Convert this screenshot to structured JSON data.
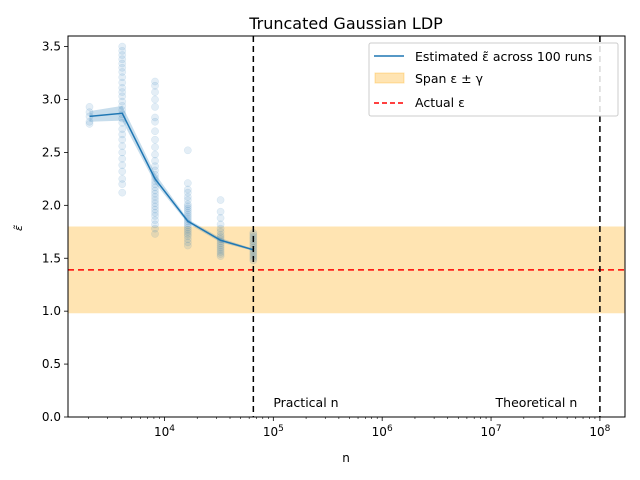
{
  "chart_data": {
    "type": "line",
    "title": "Truncated Gaussian LDP",
    "xlabel": "n",
    "ylabel": "ε̃",
    "xscale": "log",
    "xlim": [
      1300,
      170000000
    ],
    "ylim": [
      0,
      3.6
    ],
    "xticks": [
      {
        "value": 10000,
        "base": "10",
        "exp": "4"
      },
      {
        "value": 100000,
        "base": "10",
        "exp": "5"
      },
      {
        "value": 1000000,
        "base": "10",
        "exp": "6"
      },
      {
        "value": 10000000,
        "base": "10",
        "exp": "7"
      },
      {
        "value": 100000000,
        "base": "10",
        "exp": "8"
      }
    ],
    "yticks": [
      {
        "value": 0.0,
        "label": "0.0"
      },
      {
        "value": 0.5,
        "label": "0.5"
      },
      {
        "value": 1.0,
        "label": "1.0"
      },
      {
        "value": 1.5,
        "label": "1.5"
      },
      {
        "value": 2.0,
        "label": "2.0"
      },
      {
        "value": 2.5,
        "label": "2.5"
      },
      {
        "value": 3.0,
        "label": "3.0"
      },
      {
        "value": 3.5,
        "label": "3.5"
      }
    ],
    "estimated_series": {
      "name": "Estimated ε̃ across 100 runs",
      "color": "#1f77b4",
      "x": [
        2048,
        4096,
        8192,
        16384,
        32768,
        65536
      ],
      "y": [
        2.84,
        2.87,
        2.25,
        1.85,
        1.67,
        1.58
      ],
      "ci_lower": [
        2.79,
        2.8,
        2.21,
        1.83,
        1.65,
        1.57
      ],
      "ci_upper": [
        2.89,
        2.94,
        2.3,
        1.87,
        1.69,
        1.59
      ]
    },
    "runs": [
      {
        "x": 2048,
        "y": [
          2.77,
          2.79,
          2.84,
          2.88,
          2.93
        ]
      },
      {
        "x": 4096,
        "y": [
          2.12,
          2.2,
          2.25,
          2.32,
          2.38,
          2.44,
          2.5,
          2.56,
          2.62,
          2.67,
          2.72,
          2.78,
          2.82,
          2.86,
          2.9,
          2.94,
          2.98,
          3.03,
          3.07,
          3.11,
          3.16,
          3.21,
          3.26,
          3.3,
          3.34,
          3.38,
          3.42,
          3.46,
          3.5
        ]
      },
      {
        "x": 8192,
        "y": [
          1.73,
          1.78,
          1.82,
          1.86,
          1.9,
          1.93,
          1.96,
          1.99,
          2.02,
          2.05,
          2.08,
          2.11,
          2.14,
          2.17,
          2.2,
          2.23,
          2.26,
          2.29,
          2.33,
          2.37,
          2.42,
          2.48,
          2.55,
          2.62,
          2.7,
          2.79,
          2.83,
          2.93,
          3.0,
          3.07,
          3.13,
          3.17
        ]
      },
      {
        "x": 16384,
        "y": [
          1.62,
          1.65,
          1.68,
          1.71,
          1.73,
          1.75,
          1.77,
          1.79,
          1.81,
          1.83,
          1.85,
          1.87,
          1.89,
          1.91,
          1.93,
          1.95,
          1.97,
          1.99,
          2.01,
          2.05,
          2.08,
          2.12,
          2.15,
          2.21,
          2.52
        ]
      },
      {
        "x": 32768,
        "y": [
          1.52,
          1.54,
          1.56,
          1.58,
          1.6,
          1.62,
          1.64,
          1.66,
          1.68,
          1.7,
          1.72,
          1.75,
          1.78,
          1.82,
          1.88,
          1.94,
          2.05
        ]
      },
      {
        "x": 65536,
        "y": [
          1.48,
          1.5,
          1.52,
          1.54,
          1.56,
          1.58,
          1.6,
          1.62,
          1.64,
          1.66,
          1.68,
          1.7,
          1.72,
          1.74
        ]
      }
    ],
    "span_band": {
      "name": "Span ε ± γ",
      "ymin": 0.98,
      "ymax": 1.8,
      "color": "#ffa500"
    },
    "actual_line": {
      "name": "Actual ε",
      "y": 1.39,
      "color": "#ff0000"
    },
    "vlines": [
      {
        "x": 65536,
        "label": "Practical n",
        "label_x": 100000
      },
      {
        "x": 100000000,
        "label": "Theoretical n",
        "label_x": 11000000
      }
    ],
    "legend": {
      "placement": "upper right"
    }
  }
}
